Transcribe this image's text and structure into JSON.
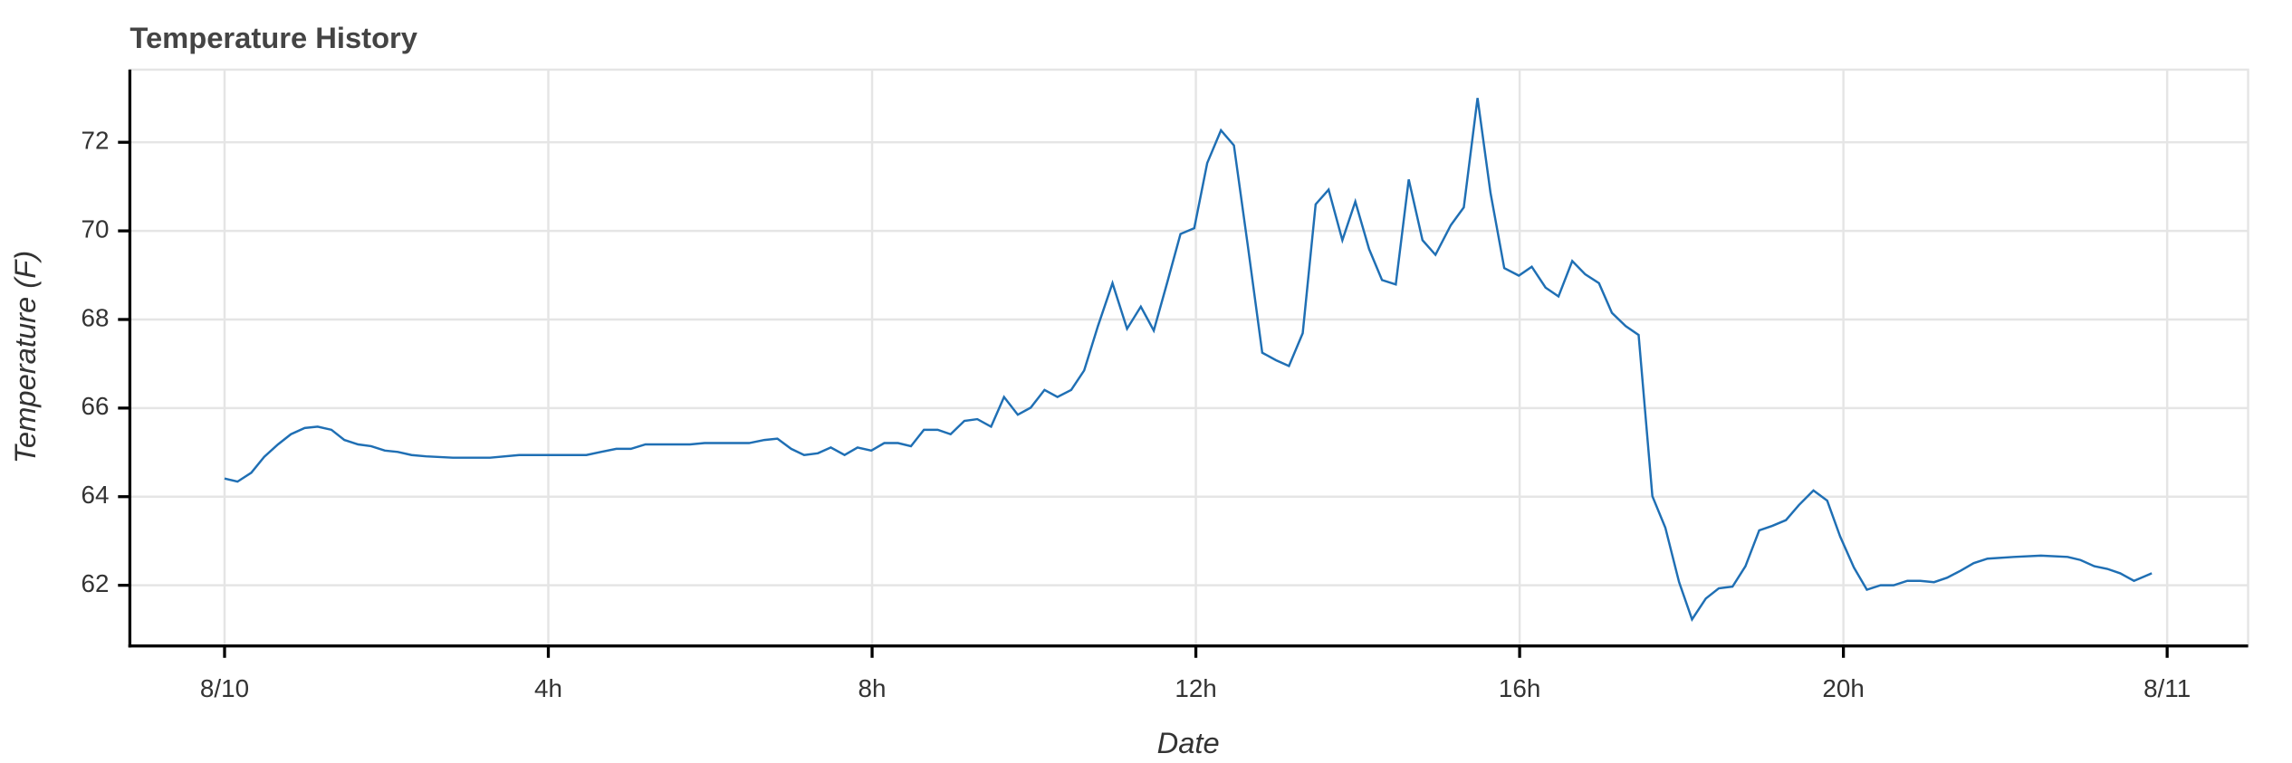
{
  "chart_data": {
    "type": "line",
    "title": "Temperature History",
    "xlabel": "Date",
    "ylabel": "Temperature (F)",
    "x": [
      0,
      0.16,
      0.33,
      0.49,
      0.66,
      0.82,
      0.99,
      1.15,
      1.32,
      1.48,
      1.65,
      1.81,
      1.98,
      2.14,
      2.31,
      2.49,
      2.82,
      3.28,
      3.64,
      4.47,
      4.65,
      4.84,
      5.02,
      5.2,
      5.38,
      5.75,
      5.93,
      6.12,
      6.48,
      6.67,
      6.83,
      7.0,
      7.16,
      7.33,
      7.49,
      7.66,
      7.82,
      7.99,
      8.15,
      8.32,
      8.48,
      8.64,
      8.81,
      8.97,
      9.14,
      9.3,
      9.47,
      9.63,
      9.8,
      9.96,
      10.13,
      10.29,
      10.46,
      10.62,
      10.79,
      10.97,
      11.15,
      11.32,
      11.48,
      11.65,
      11.81,
      11.98,
      12.14,
      12.31,
      12.47,
      12.64,
      12.82,
      12.99,
      13.15,
      13.32,
      13.48,
      13.64,
      13.81,
      13.97,
      14.14,
      14.3,
      14.47,
      14.63,
      14.8,
      14.96,
      15.15,
      15.31,
      15.48,
      15.64,
      15.81,
      15.99,
      16.15,
      16.32,
      16.48,
      16.65,
      16.81,
      16.98,
      17.14,
      17.31,
      17.47,
      17.64,
      17.8,
      17.97,
      18.13,
      18.3,
      18.46,
      18.63,
      18.79,
      18.96,
      19.12,
      19.29,
      19.45,
      19.63,
      19.8,
      19.96,
      20.13,
      20.29,
      20.46,
      20.62,
      20.79,
      20.95,
      21.12,
      21.28,
      21.45,
      21.61,
      21.78,
      22.11,
      22.44,
      22.77,
      22.93,
      23.1,
      23.26,
      23.42,
      23.59,
      23.81
    ],
    "series": [
      {
        "color": "#1f6fb4",
        "values": [
          64.41,
          64.34,
          64.54,
          64.9,
          65.18,
          65.41,
          65.55,
          65.58,
          65.51,
          65.28,
          65.18,
          65.14,
          65.04,
          65.01,
          64.94,
          64.91,
          64.88,
          64.88,
          64.94,
          64.94,
          65.01,
          65.08,
          65.08,
          65.18,
          65.18,
          65.18,
          65.21,
          65.21,
          65.21,
          65.28,
          65.31,
          65.08,
          64.94,
          64.98,
          65.11,
          64.94,
          65.11,
          65.04,
          65.21,
          65.21,
          65.14,
          65.51,
          65.51,
          65.41,
          65.71,
          65.75,
          65.58,
          66.25,
          65.85,
          66.01,
          66.41,
          66.25,
          66.41,
          66.85,
          67.85,
          68.82,
          67.79,
          68.29,
          67.75,
          68.86,
          69.93,
          70.06,
          71.53,
          72.27,
          71.93,
          69.69,
          67.25,
          67.08,
          66.95,
          67.69,
          70.6,
          70.93,
          69.79,
          70.66,
          69.59,
          68.89,
          68.79,
          71.16,
          69.79,
          69.46,
          70.13,
          70.53,
          73.0,
          70.86,
          69.16,
          68.99,
          69.19,
          68.72,
          68.52,
          69.32,
          69.02,
          68.82,
          68.15,
          67.85,
          67.65,
          64.01,
          63.3,
          62.07,
          61.23,
          61.7,
          61.93,
          61.97,
          62.43,
          63.24,
          63.34,
          63.47,
          63.81,
          64.14,
          63.91,
          63.1,
          62.4,
          61.9,
          62.0,
          62.0,
          62.1,
          62.1,
          62.07,
          62.17,
          62.33,
          62.5,
          62.6,
          62.64,
          62.67,
          62.64,
          62.57,
          62.43,
          62.37,
          62.27,
          62.1,
          62.27
        ]
      }
    ],
    "xlim": [
      -1.17,
      25.0
    ],
    "xticks": [
      {
        "value": 0,
        "label": "8/10"
      },
      {
        "value": 4,
        "label": "4h"
      },
      {
        "value": 8,
        "label": "8h"
      },
      {
        "value": 12,
        "label": "12h"
      },
      {
        "value": 16,
        "label": "16h"
      },
      {
        "value": 20,
        "label": "20h"
      },
      {
        "value": 24,
        "label": "8/11"
      }
    ],
    "ylim": [
      60.63,
      73.64
    ],
    "yticks": [
      62,
      64,
      66,
      68,
      70,
      72
    ],
    "grid": true
  }
}
